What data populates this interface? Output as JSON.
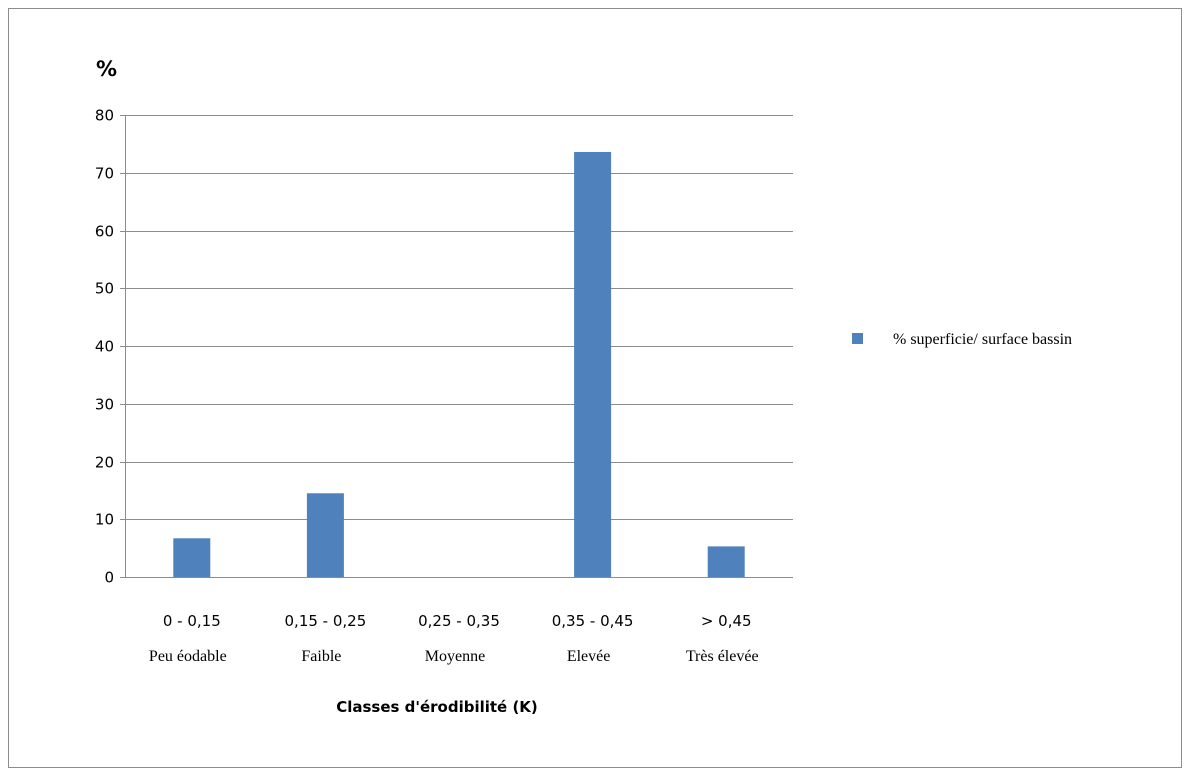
{
  "chart_data": {
    "type": "bar",
    "unit_label": "%",
    "categories": [
      "0 - 0,15",
      "0,15 - 0,25",
      "0,25 - 0,35",
      "0,35 - 0,45",
      "> 0,45"
    ],
    "category_sublabels": [
      "Peu éodable",
      "Faible",
      "Moyenne",
      "Elevée",
      "Très élevée"
    ],
    "series": [
      {
        "name": "% superficie/ surface bassin",
        "values": [
          6.7,
          14.5,
          0,
          73.6,
          5.3
        ],
        "color": "#4f81bd"
      }
    ],
    "xlabel": "Classes d'érodibilité (K)",
    "ylabel": "%",
    "ylim": [
      0,
      80
    ],
    "yticks": [
      0,
      10,
      20,
      30,
      40,
      50,
      60,
      70,
      80
    ],
    "grid": true,
    "legend_position": "right"
  }
}
